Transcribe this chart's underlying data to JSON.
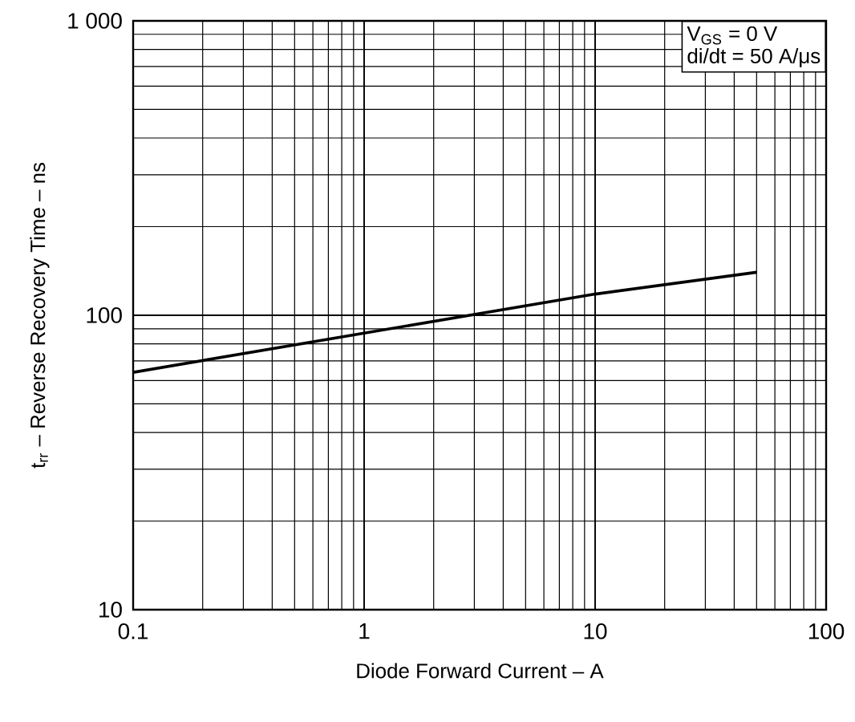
{
  "chart_data": {
    "type": "line",
    "xlabel": "Diode Forward Current – A",
    "ylabel": "t$_{rr}$ – Reverse Recovery Time – ns",
    "annotations": [
      "V$_{GS}$ = 0 V",
      "di/dt = 50 A/μs"
    ],
    "x": [
      0.1,
      1,
      10,
      50
    ],
    "series": [
      {
        "color": "#000000",
        "values": [
          64,
          87,
          118,
          140
        ]
      }
    ],
    "log": "xy",
    "xlim": [
      0.1,
      100
    ],
    "ylim": [
      10,
      1000
    ],
    "xticks": [
      0.1,
      1,
      10,
      100
    ],
    "yticks": [
      10,
      100,
      {
        "value": 1000,
        "label": "1 000"
      }
    ],
    "grid": true,
    "marker": "none",
    "line_style": "solid"
  }
}
